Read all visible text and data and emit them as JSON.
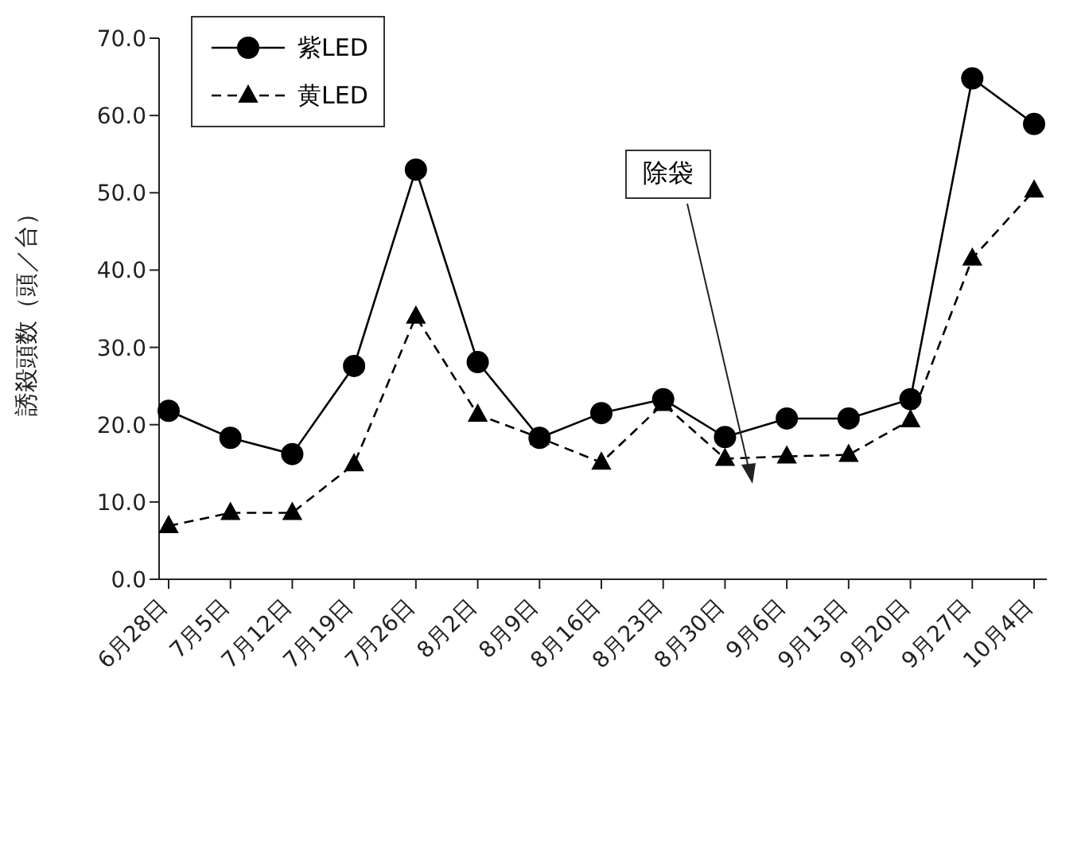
{
  "chart_data": {
    "type": "line",
    "categories": [
      "6月28日",
      "7月5日",
      "7月12日",
      "7月19日",
      "7月26日",
      "8月2日",
      "8月9日",
      "8月16日",
      "8月23日",
      "8月30日",
      "9月6日",
      "9月13日",
      "9月20日",
      "9月27日",
      "10月4日"
    ],
    "series": [
      {
        "name": "紫LED",
        "color": "#000000",
        "marker": "circle",
        "line_style": "solid",
        "values": [
          21.8,
          18.3,
          16.2,
          27.6,
          53.0,
          28.1,
          18.3,
          21.5,
          23.3,
          18.4,
          20.8,
          20.8,
          23.3,
          64.8,
          58.9
        ]
      },
      {
        "name": "黄LED",
        "color": "#000000",
        "marker": "triangle",
        "line_style": "dashed",
        "values": [
          6.9,
          8.6,
          8.6,
          14.9,
          34.0,
          21.3,
          18.3,
          15.1,
          22.7,
          15.6,
          15.9,
          16.1,
          20.6,
          41.5,
          50.3
        ]
      }
    ],
    "ylabel": "誘殺頭数（頭／台）",
    "ylim": [
      0,
      70
    ],
    "yticks": [
      {
        "value": 0,
        "label": "0.0"
      },
      {
        "value": 10,
        "label": "10.0"
      },
      {
        "value": 20,
        "label": "20.0"
      },
      {
        "value": 30,
        "label": "30.0"
      },
      {
        "value": 40,
        "label": "40.0"
      },
      {
        "value": 50,
        "label": "50.0"
      },
      {
        "value": 60,
        "label": "60.0"
      },
      {
        "value": 70,
        "label": "70.0"
      }
    ],
    "annotations": [
      "除袋"
    ],
    "grid": false,
    "legend": "top left"
  }
}
